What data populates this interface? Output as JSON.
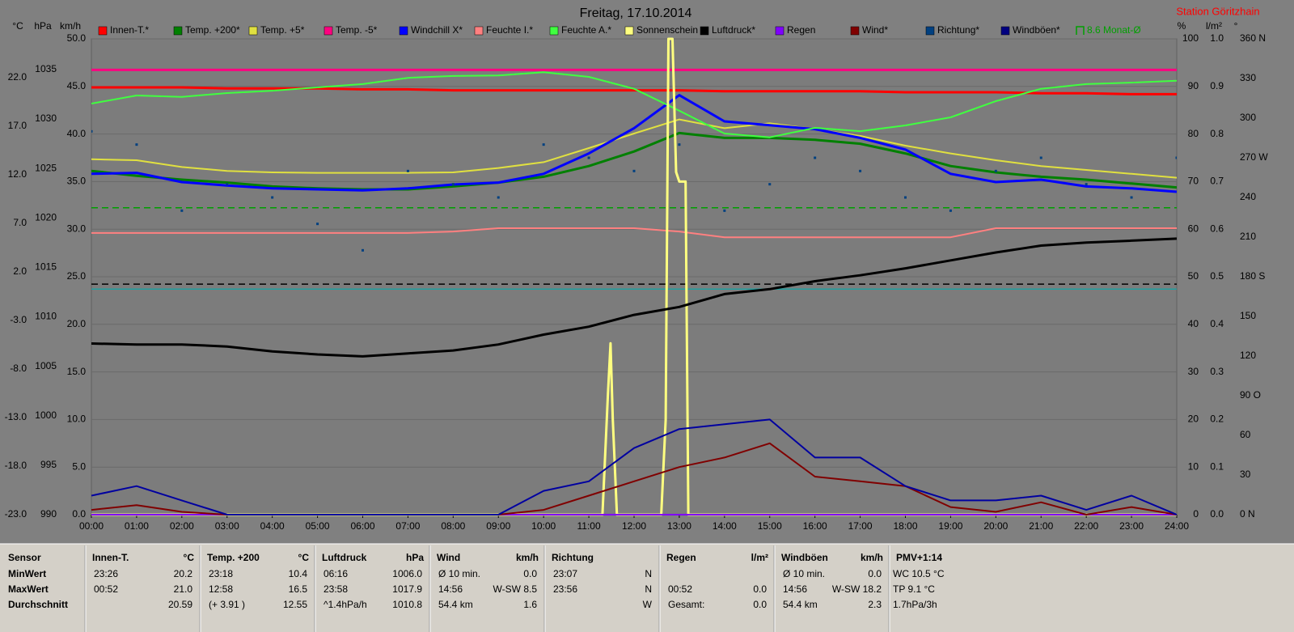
{
  "chart_data": {
    "type": "line",
    "title": "Freitag, 17.10.2014",
    "station": "Station Göritzhain",
    "xlim": [
      0,
      24
    ],
    "xticks": [
      {
        "value": 0,
        "label": "00:00"
      },
      {
        "value": 1,
        "label": "01:00"
      },
      {
        "value": 2,
        "label": "02:00"
      },
      {
        "value": 3,
        "label": "03:00"
      },
      {
        "value": 4,
        "label": "04:00"
      },
      {
        "value": 5,
        "label": "05:00"
      },
      {
        "value": 6,
        "label": "06:00"
      },
      {
        "value": 7,
        "label": "07:00"
      },
      {
        "value": 8,
        "label": "08:00"
      },
      {
        "value": 9,
        "label": "09:00"
      },
      {
        "value": 10,
        "label": "10:00"
      },
      {
        "value": 11,
        "label": "11:00"
      },
      {
        "value": 12,
        "label": "12:00"
      },
      {
        "value": 13,
        "label": "13:00"
      },
      {
        "value": 14,
        "label": "14:00"
      },
      {
        "value": 15,
        "label": "15:00"
      },
      {
        "value": 16,
        "label": "16:00"
      },
      {
        "value": 17,
        "label": "17:00"
      },
      {
        "value": 18,
        "label": "18:00"
      },
      {
        "value": 19,
        "label": "19:00"
      },
      {
        "value": 20,
        "label": "20:00"
      },
      {
        "value": 21,
        "label": "21:00"
      },
      {
        "value": 22,
        "label": "22:00"
      },
      {
        "value": 23,
        "label": "23:00"
      },
      {
        "value": 24,
        "label": "24:00"
      }
    ],
    "grid": true,
    "axes": [
      {
        "unit": "°C",
        "lim": [
          -23,
          26
        ],
        "ticks": [
          {
            "value": -23,
            "label": "-23.0"
          },
          {
            "value": -18,
            "label": "-18.0"
          },
          {
            "value": -13,
            "label": "-13.0"
          },
          {
            "value": -8,
            "label": "-8.0"
          },
          {
            "value": -3,
            "label": "-3.0"
          },
          {
            "value": 2,
            "label": "2.0"
          },
          {
            "value": 7,
            "label": "7.0"
          },
          {
            "value": 12,
            "label": "12.0"
          },
          {
            "value": 17,
            "label": "17.0"
          },
          {
            "value": 22,
            "label": "22.0"
          }
        ]
      },
      {
        "unit": "hPa",
        "lim": [
          990,
          1038.1
        ],
        "ticks": [
          990,
          995,
          1000,
          1005,
          1010,
          1015,
          1020,
          1025,
          1030,
          1035
        ]
      },
      {
        "unit": "km/h",
        "lim": [
          0,
          50
        ],
        "ticks": [
          {
            "value": 0,
            "label": "0.0"
          },
          {
            "value": 5,
            "label": "5.0"
          },
          {
            "value": 10,
            "label": "10.0"
          },
          {
            "value": 15,
            "label": "15.0"
          },
          {
            "value": 20,
            "label": "20.0"
          },
          {
            "value": 25,
            "label": "25.0"
          },
          {
            "value": 30,
            "label": "30.0"
          },
          {
            "value": 35,
            "label": "35.0"
          },
          {
            "value": 40,
            "label": "40.0"
          },
          {
            "value": 45,
            "label": "45.0"
          },
          {
            "value": 50,
            "label": "50.0"
          }
        ],
        "grid": true
      },
      {
        "unit": "%",
        "lim": [
          0,
          100
        ],
        "ticks": [
          0,
          10,
          20,
          30,
          40,
          50,
          60,
          70,
          80,
          90,
          100
        ]
      },
      {
        "unit": "l/m²",
        "lim": [
          0,
          1
        ],
        "ticks": [
          {
            "value": 0,
            "label": "0.0"
          },
          0.1,
          0.2,
          0.3,
          0.4,
          0.5,
          0.6,
          0.7,
          0.8,
          0.9,
          {
            "value": 1,
            "label": "1.0"
          }
        ]
      },
      {
        "unit": "°",
        "lim": [
          0,
          360
        ],
        "ticks": [
          {
            "value": 0,
            "label": "0 N"
          },
          30,
          60,
          {
            "value": 90,
            "label": "90 O"
          },
          120,
          150,
          {
            "value": 180,
            "label": "180 S"
          },
          210,
          240,
          {
            "value": 270,
            "label": "270 W"
          },
          300,
          330,
          {
            "value": 360,
            "label": "360 N"
          }
        ]
      }
    ],
    "x": [
      0,
      1,
      2,
      3,
      4,
      5,
      6,
      7,
      8,
      9,
      10,
      11,
      12,
      13,
      14,
      15,
      16,
      17,
      18,
      19,
      20,
      21,
      22,
      23,
      24
    ],
    "series": [
      {
        "name": "Innen-T.*",
        "color": "#ff0000",
        "axis": "°C",
        "width": 3,
        "values": [
          21.0,
          21.0,
          21.0,
          20.9,
          20.9,
          20.9,
          20.8,
          20.8,
          20.7,
          20.7,
          20.7,
          20.7,
          20.7,
          20.7,
          20.6,
          20.6,
          20.6,
          20.6,
          20.5,
          20.5,
          20.5,
          20.4,
          20.4,
          20.3,
          20.3
        ]
      },
      {
        "name": "Temp. +200*",
        "color": "#008000",
        "axis": "°C",
        "width": 3,
        "values": [
          12.4,
          11.9,
          11.5,
          11.2,
          10.8,
          10.6,
          10.5,
          10.5,
          10.8,
          11.2,
          11.8,
          12.9,
          14.4,
          16.3,
          15.8,
          15.8,
          15.6,
          15.2,
          14.2,
          12.9,
          12.25,
          11.8,
          11.5,
          11.1,
          10.7
        ]
      },
      {
        "name": "Temp. +5*",
        "color": "#e0e040",
        "axis": "°C",
        "width": 2,
        "values": [
          13.6,
          13.5,
          12.8,
          12.4,
          12.25,
          12.2,
          12.2,
          12.2,
          12.25,
          12.7,
          13.3,
          14.75,
          16.25,
          17.7,
          16.8,
          17.3,
          16.7,
          16.0,
          15.0,
          14.2,
          13.5,
          12.9,
          12.5,
          12.1,
          11.7
        ]
      },
      {
        "name": "Temp. -5*",
        "color": "#ff0080",
        "axis": "°C",
        "width": 3,
        "values": [
          22.8,
          22.8,
          22.8,
          22.8,
          22.8,
          22.8,
          22.8,
          22.8,
          22.8,
          22.8,
          22.8,
          22.8,
          22.8,
          22.8,
          22.8,
          22.8,
          22.8,
          22.8,
          22.8,
          22.8,
          22.8,
          22.8,
          22.8,
          22.8,
          22.8
        ]
      },
      {
        "name": "Windchill X*",
        "color": "#0000ff",
        "axis": "°C",
        "width": 3,
        "values": [
          12.1,
          12.2,
          11.25,
          10.9,
          10.6,
          10.5,
          10.4,
          10.6,
          11.0,
          11.2,
          12.1,
          14.2,
          16.8,
          20.2,
          17.5,
          17.1,
          16.7,
          15.8,
          14.6,
          12.1,
          11.25,
          11.5,
          10.8,
          10.6,
          10.25
        ]
      },
      {
        "name": "Feuchte I.*",
        "color": "#ff8080",
        "axis": "%",
        "width": 2,
        "values": [
          59.2,
          59.2,
          59.2,
          59.2,
          59.2,
          59.2,
          59.2,
          59.2,
          59.5,
          60.2,
          60.2,
          60.2,
          60.2,
          59.5,
          58.3,
          58.3,
          58.3,
          58.3,
          58.3,
          58.3,
          60.2,
          60.2,
          60.2,
          60.2,
          60.2
        ]
      },
      {
        "name": "Feuchte A.*",
        "color": "#40ff40",
        "axis": "%",
        "width": 2,
        "values": [
          86.4,
          88.1,
          87.8,
          88.6,
          89.1,
          89.8,
          90.5,
          91.8,
          92.2,
          92.3,
          93.0,
          92.0,
          89.5,
          84.9,
          80.1,
          79.3,
          81.3,
          80.6,
          81.8,
          83.5,
          86.9,
          89.5,
          90.5,
          90.8,
          91.2
        ]
      },
      {
        "name": "Sonnenschein",
        "color": "#ffff80",
        "axis": "%",
        "width": 3,
        "x": [
          0,
          11.3,
          11.42,
          11.48,
          11.53,
          11.62,
          12.6,
          12.7,
          12.76,
          12.85,
          12.93,
          13.0,
          13.14,
          13.2,
          24
        ],
        "values": [
          0,
          0,
          25,
          36,
          20,
          0,
          0,
          20,
          100,
          100,
          72,
          70,
          70,
          0,
          0
        ]
      },
      {
        "name": "Luftdruck*",
        "color": "#000000",
        "axis": "hPa",
        "width": 3,
        "values": [
          1007.3,
          1007.2,
          1007.2,
          1007.0,
          1006.5,
          1006.2,
          1006.0,
          1006.3,
          1006.6,
          1007.2,
          1008.2,
          1009.0,
          1010.2,
          1011.0,
          1012.3,
          1012.8,
          1013.6,
          1014.2,
          1014.9,
          1015.7,
          1016.5,
          1017.2,
          1017.5,
          1017.7,
          1017.9
        ]
      },
      {
        "name": "Regen",
        "color": "#8000ff",
        "axis": "l/m²",
        "width": 2,
        "x": [
          0,
          24
        ],
        "values": [
          0,
          0
        ]
      },
      {
        "name": "Wind*",
        "color": "#800000",
        "axis": "km/h",
        "width": 2,
        "values": [
          0.5,
          1.0,
          0.3,
          0,
          0,
          0,
          0,
          0,
          0,
          0,
          0.5,
          2.0,
          3.5,
          5.0,
          6.0,
          7.5,
          4.0,
          3.5,
          3.0,
          0.8,
          0.3,
          1.3,
          0,
          0.8,
          0
        ]
      },
      {
        "name": "Richtung*",
        "color": "#004080",
        "axis": "°",
        "mark": "dots",
        "values": [
          290,
          280,
          230,
          250,
          240,
          220,
          200,
          260,
          250,
          240,
          280,
          270,
          260,
          280,
          230,
          250,
          270,
          260,
          240,
          230,
          260,
          270,
          250,
          240,
          270
        ]
      },
      {
        "name": "Windböen*",
        "color": "#0000a0",
        "legend_color": "#000080",
        "axis": "km/h",
        "width": 2,
        "values": [
          2.0,
          3.0,
          1.5,
          0,
          0,
          0,
          0,
          0,
          0,
          0,
          2.5,
          3.5,
          7.0,
          9.0,
          9.5,
          10.0,
          6.0,
          6.0,
          3.0,
          1.5,
          1.5,
          2.0,
          0.5,
          2.0,
          0
        ]
      }
    ],
    "reference_lines": [
      {
        "name": "8.6 Monat-Ø",
        "axis": "°C",
        "value": 8.6,
        "color": "#00a000",
        "dash": true
      },
      {
        "axis": "hPa",
        "value": 1013.3,
        "color": "#000000",
        "dash": true
      },
      {
        "axis": "%",
        "value": 47.4,
        "color": "#20a0a0",
        "dash": false
      }
    ]
  },
  "table": {
    "sensor_header": "Sensor",
    "row_labels": [
      "MinWert",
      "MaxWert",
      "Durchschnitt"
    ],
    "columns": [
      {
        "title": "Innen-T.",
        "unit": "°C",
        "rows": [
          [
            "23:26",
            "20.2"
          ],
          [
            "00:52",
            "21.0"
          ],
          [
            null,
            "20.59"
          ]
        ]
      },
      {
        "title": "Temp. +200",
        "unit": "°C",
        "rows": [
          [
            "23:18",
            "10.4"
          ],
          [
            "12:58",
            "16.5"
          ],
          [
            "(+ 3.91 )",
            "12.55"
          ]
        ]
      },
      {
        "title": "Luftdruck",
        "unit": "hPa",
        "rows": [
          [
            "06:16",
            "1006.0"
          ],
          [
            "23:58",
            "1017.9"
          ],
          [
            "^1.4hPa/h",
            "1010.8"
          ]
        ]
      },
      {
        "title": "Wind",
        "unit": "km/h",
        "rows": [
          [
            "Ø 10 min.",
            "0.0"
          ],
          [
            "14:56",
            "W-SW 8.5"
          ],
          [
            "54.4 km",
            "1.6"
          ]
        ]
      },
      {
        "title": "Richtung",
        "unit": null,
        "rows": [
          [
            "23:07",
            "N"
          ],
          [
            "23:56",
            "N"
          ],
          [
            null,
            "W"
          ]
        ]
      },
      {
        "title": "Regen",
        "unit": "l/m²",
        "rows": [
          [
            null,
            null
          ],
          [
            "00:52",
            "0.0"
          ],
          [
            "Gesamt:",
            "0.0"
          ]
        ]
      },
      {
        "title": "Windböen",
        "unit": "km/h",
        "rows": [
          [
            "Ø 10 min.",
            "0.0"
          ],
          [
            "14:56",
            "W-SW 18.2"
          ],
          [
            "54.4 km",
            "2.3"
          ]
        ]
      },
      {
        "title": "PMV+1:14",
        "unit": null,
        "rows": [
          [
            "WC 10.5 °C",
            null
          ],
          [
            "TP 9.1 °C",
            null
          ],
          [
            "1.7hPa/3h",
            null
          ]
        ]
      }
    ]
  }
}
